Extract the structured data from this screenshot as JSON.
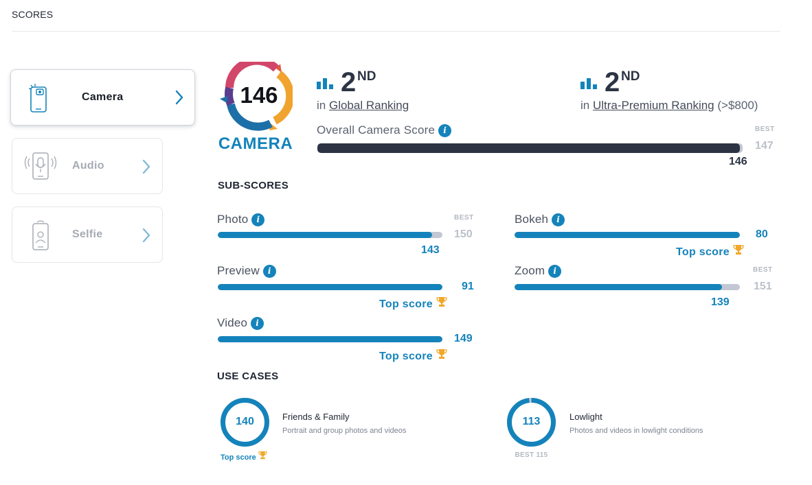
{
  "header": {
    "title": "SCORES"
  },
  "tabs": [
    {
      "label": "Camera",
      "icon": "camera-phone-icon",
      "active": true
    },
    {
      "label": "Audio",
      "icon": "microphone-phone-icon",
      "active": false
    },
    {
      "label": "Selfie",
      "icon": "selfie-phone-icon",
      "active": false
    }
  ],
  "score": {
    "value": "146",
    "category": "CAMERA"
  },
  "rankings": [
    {
      "rank": "2",
      "suffix": "ND",
      "prefix": "in",
      "link": "Global Ranking",
      "extra": ""
    },
    {
      "rank": "2",
      "suffix": "ND",
      "prefix": "in",
      "link": "Ultra-Premium Ranking",
      "extra": "(>$800)"
    }
  ],
  "overall": {
    "label": "Overall Camera Score",
    "best_label": "BEST",
    "best": "147",
    "value": "146",
    "fraction": 0.993
  },
  "subscores": {
    "heading": "SUB-SCORES",
    "items": [
      {
        "label": "Photo",
        "value": "143",
        "best_label": "BEST",
        "best": "150",
        "fraction": 0.953,
        "top": false
      },
      {
        "label": "Bokeh",
        "value": "80",
        "top_label": "Top score",
        "fraction": 1.0,
        "top": true
      },
      {
        "label": "Preview",
        "value": "91",
        "top_label": "Top score",
        "fraction": 1.0,
        "top": true
      },
      {
        "label": "Zoom",
        "value": "139",
        "best_label": "BEST",
        "best": "151",
        "fraction": 0.921,
        "top": false
      },
      {
        "label": "Video",
        "value": "149",
        "top_label": "Top score",
        "fraction": 1.0,
        "top": true
      }
    ]
  },
  "use_cases": {
    "heading": "USE CASES",
    "items": [
      {
        "value": "140",
        "title": "Friends & Family",
        "desc": "Portrait and group photos and videos",
        "footer": "Top score",
        "fraction": 1.0
      },
      {
        "value": "113",
        "title": "Lowlight",
        "desc": "Photos and videos in lowlight conditions",
        "footer": "BEST 115",
        "fraction": 0.983
      }
    ]
  },
  "colors": {
    "accent": "#1483bb",
    "dark_bar": "#2c3444",
    "track": "#c3c7d3",
    "trophy": "#f0a82a"
  }
}
